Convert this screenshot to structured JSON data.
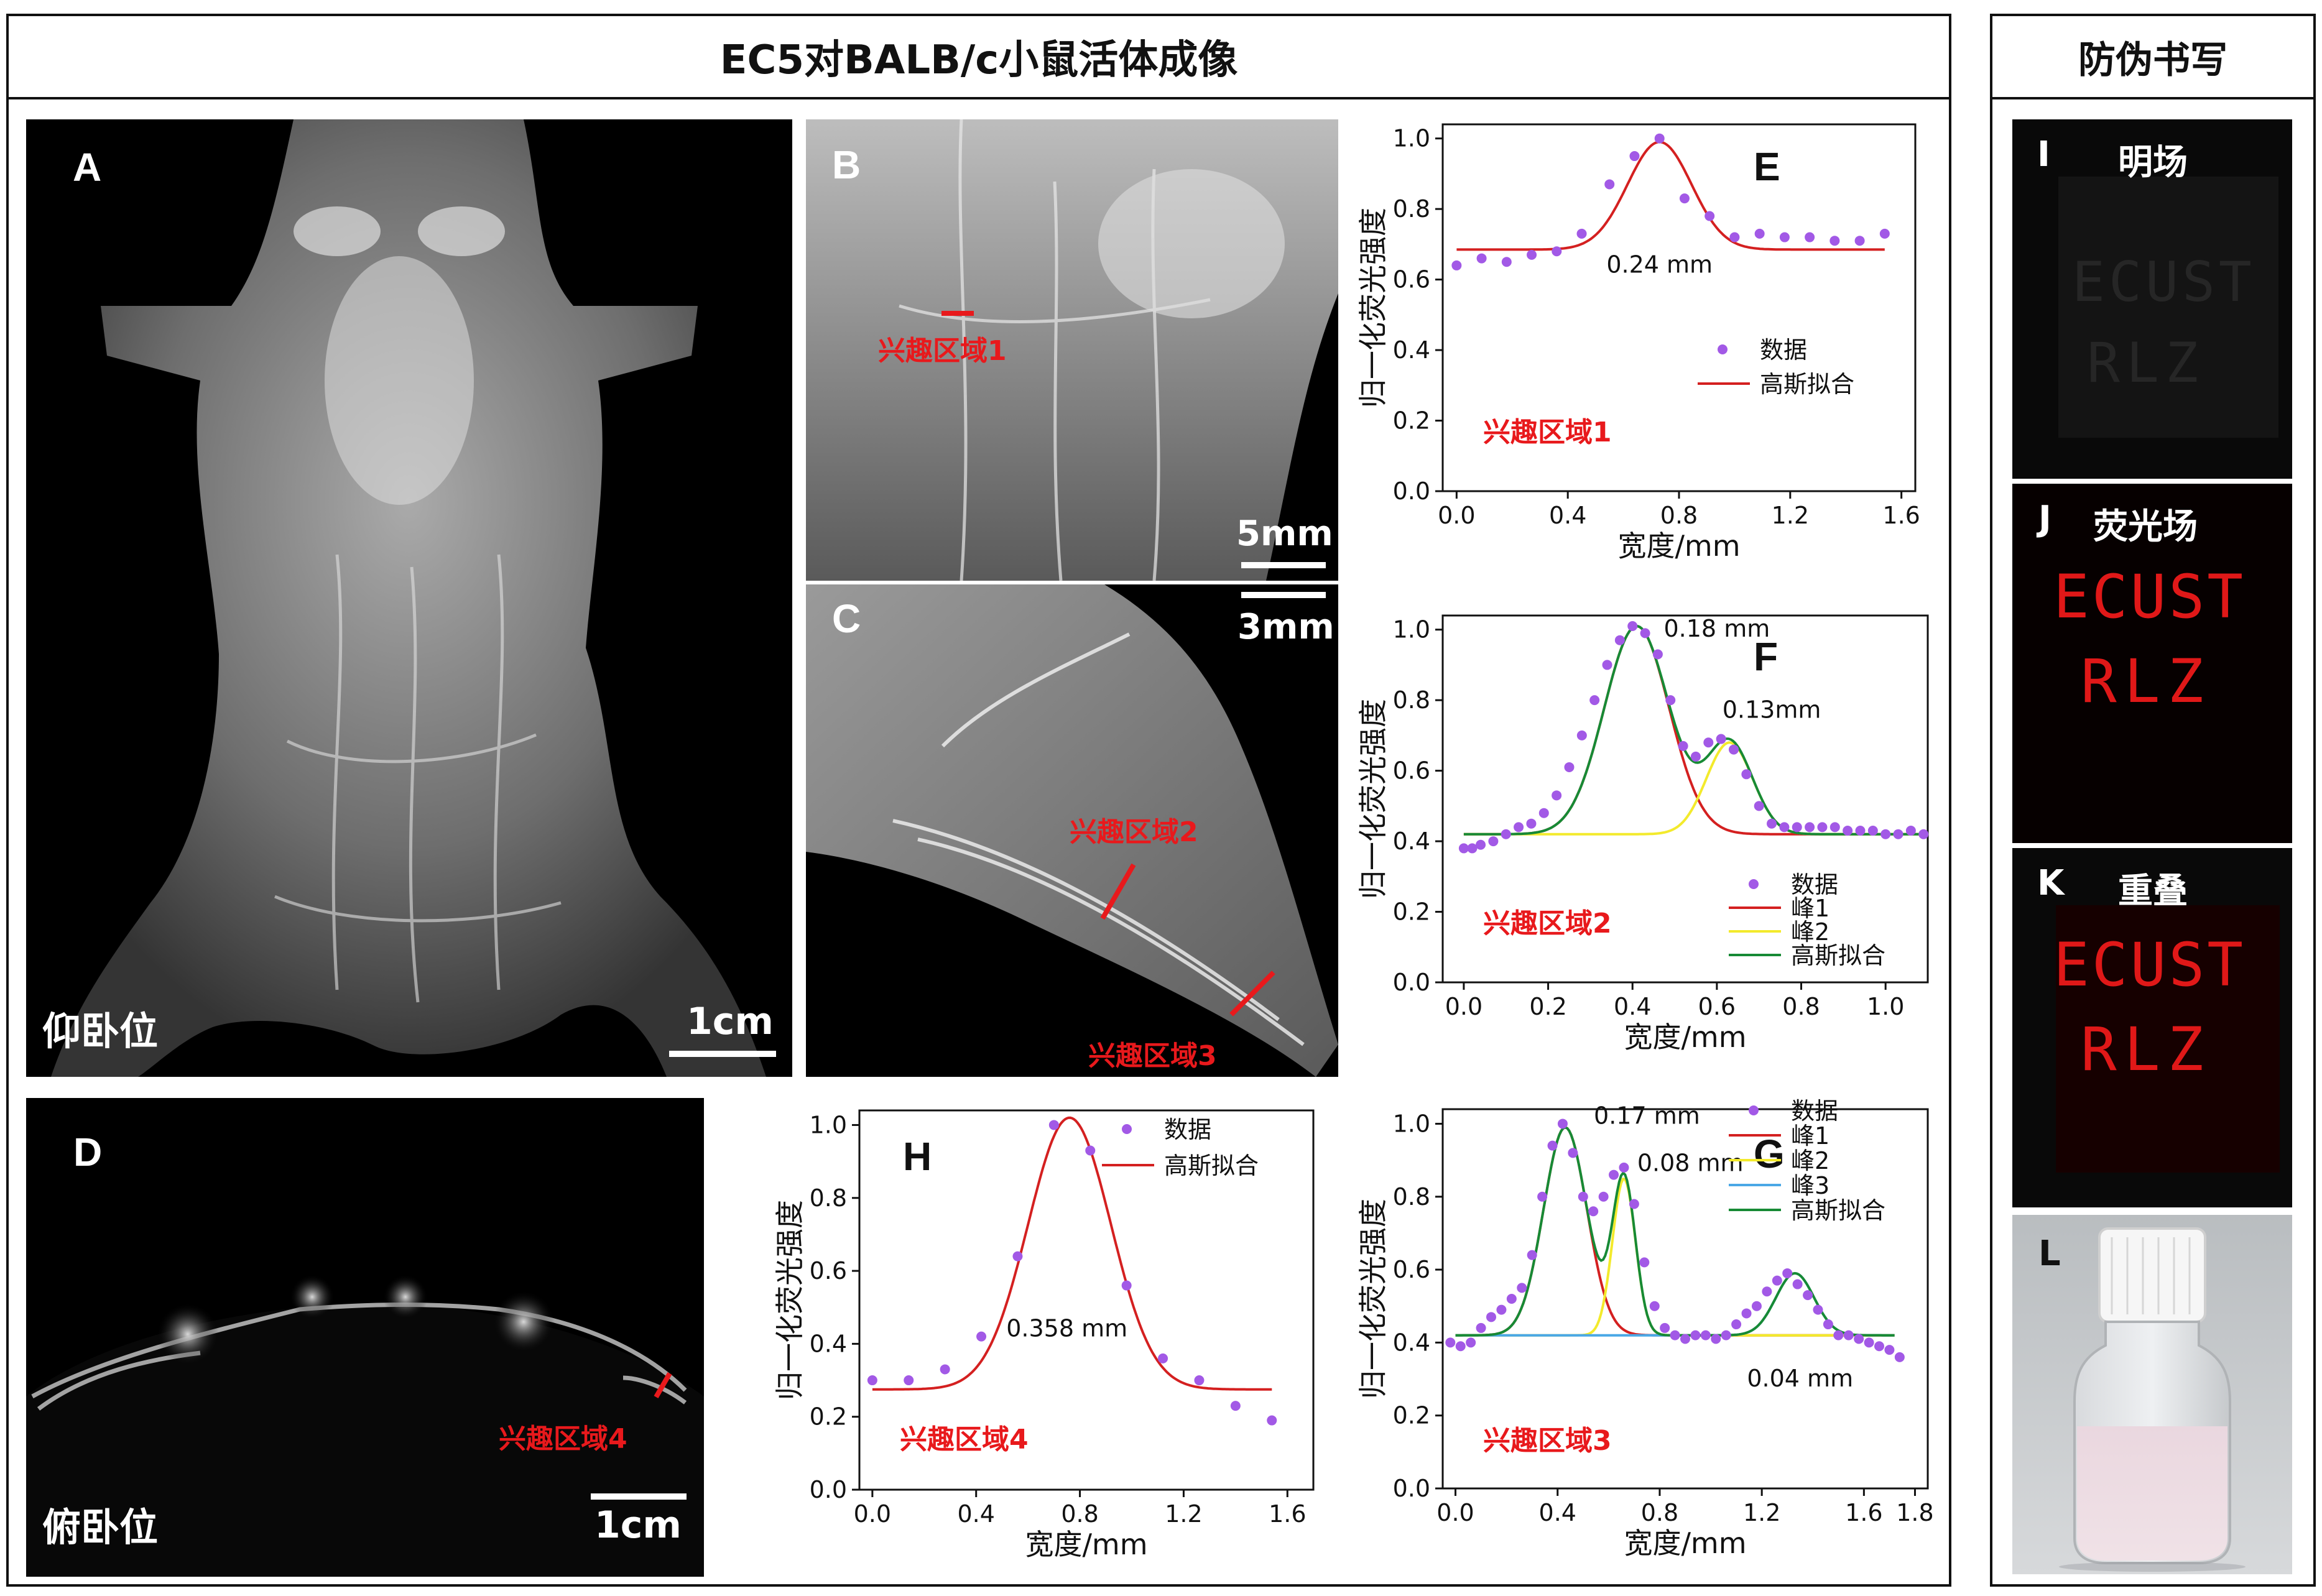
{
  "title": "EC5对BALB/c小鼠活体成像",
  "side_title": "防伪书写",
  "panels": {
    "A": {
      "letter": "A",
      "pose": "仰卧位",
      "scale": "1cm"
    },
    "B": {
      "letter": "B",
      "roi": "兴趣区域1",
      "scale": "5mm"
    },
    "C": {
      "letter": "C",
      "roi2": "兴趣区域2",
      "roi3": "兴趣区域3",
      "scale": "3mm"
    },
    "D": {
      "letter": "D",
      "pose": "俯卧位",
      "roi": "兴趣区域4",
      "scale": "1cm"
    },
    "I": {
      "letter": "I",
      "label": "明场",
      "writing": [
        "ECUST",
        "RLZ"
      ]
    },
    "J": {
      "letter": "J",
      "label": "荧光场",
      "writing": [
        "ECUST",
        "RLZ"
      ]
    },
    "K": {
      "letter": "K",
      "label": "重叠",
      "writing": [
        "ECUST",
        "RLZ"
      ]
    },
    "L": {
      "letter": "L"
    }
  },
  "colors": {
    "red_marker": "#e8191c",
    "data_point": "#a259e6",
    "fit": "#d42020",
    "peak1": "#d42020",
    "peak2": "#f3ea2c",
    "peak3": "#4aa8e6",
    "gauss_fit": "#178a35"
  },
  "chart_data": [
    {
      "id": "E",
      "type": "scatter",
      "letter": "E",
      "roi": "兴趣区域1",
      "xlabel": "宽度/mm",
      "ylabel": "归一化荧光强度",
      "xlim": [
        -0.05,
        1.65
      ],
      "ylim": [
        0,
        1.04
      ],
      "xticks": [
        0.0,
        0.4,
        0.8,
        1.2,
        1.6
      ],
      "yticks": [
        0.0,
        0.2,
        0.4,
        0.6,
        0.8,
        1.0
      ],
      "xtick_labels": [
        "0.0",
        "0.4",
        "0.8",
        "1.2",
        "1.6"
      ],
      "ytick_labels": [
        "0.0",
        "0.2",
        "0.4",
        "0.6",
        "0.8",
        "1.0"
      ],
      "legend": [
        "数据",
        "高斯拟合"
      ],
      "annotations": [
        {
          "text": "0.24 mm",
          "x": 0.73,
          "y": 0.62
        }
      ],
      "data": {
        "x": [
          0.0,
          0.09,
          0.18,
          0.27,
          0.36,
          0.45,
          0.55,
          0.64,
          0.73,
          0.82,
          0.91,
          1.0,
          1.09,
          1.18,
          1.27,
          1.36,
          1.45,
          1.54
        ],
        "y": [
          0.64,
          0.66,
          0.65,
          0.67,
          0.68,
          0.73,
          0.87,
          0.95,
          1.0,
          0.83,
          0.78,
          0.72,
          0.73,
          0.72,
          0.72,
          0.71,
          0.71,
          0.73
        ]
      },
      "fits": [
        {
          "name": "高斯拟合",
          "base": 0.685,
          "amp": 0.305,
          "mu": 0.73,
          "sigma": 0.115,
          "color": "#d42020",
          "x0": 0.0,
          "x1": 1.54
        }
      ]
    },
    {
      "id": "F",
      "type": "scatter",
      "letter": "F",
      "roi": "兴趣区域2",
      "xlabel": "宽度/mm",
      "ylabel": "归一化荧光强度",
      "xlim": [
        -0.05,
        1.1
      ],
      "ylim": [
        0,
        1.04
      ],
      "xticks": [
        0.0,
        0.2,
        0.4,
        0.6,
        0.8,
        1.0
      ],
      "yticks": [
        0.0,
        0.2,
        0.4,
        0.6,
        0.8,
        1.0
      ],
      "xtick_labels": [
        "0.0",
        "0.2",
        "0.4",
        "0.6",
        "0.8",
        "1.0"
      ],
      "ytick_labels": [
        "0.0",
        "0.2",
        "0.4",
        "0.6",
        "0.8",
        "1.0"
      ],
      "legend": [
        "数据",
        "峰1",
        "峰2",
        "高斯拟合"
      ],
      "annotations": [
        {
          "text": "0.18 mm",
          "x": 0.6,
          "y": 0.98
        },
        {
          "text": "0.13mm",
          "x": 0.73,
          "y": 0.75
        }
      ],
      "data": {
        "x": [
          0.0,
          0.02,
          0.04,
          0.07,
          0.1,
          0.13,
          0.16,
          0.19,
          0.22,
          0.25,
          0.28,
          0.31,
          0.34,
          0.37,
          0.4,
          0.43,
          0.46,
          0.49,
          0.52,
          0.55,
          0.58,
          0.61,
          0.64,
          0.67,
          0.7,
          0.73,
          0.76,
          0.79,
          0.82,
          0.85,
          0.88,
          0.91,
          0.94,
          0.97,
          1.0,
          1.03,
          1.06,
          1.09
        ],
        "y": [
          0.38,
          0.38,
          0.39,
          0.4,
          0.42,
          0.44,
          0.45,
          0.48,
          0.53,
          0.61,
          0.7,
          0.8,
          0.9,
          0.97,
          1.01,
          0.99,
          0.93,
          0.8,
          0.67,
          0.64,
          0.68,
          0.69,
          0.66,
          0.59,
          0.5,
          0.45,
          0.44,
          0.44,
          0.44,
          0.44,
          0.44,
          0.43,
          0.43,
          0.43,
          0.42,
          0.42,
          0.43,
          0.42
        ]
      },
      "fits": [
        {
          "name": "峰1",
          "base": 0.42,
          "amp": 0.59,
          "mu": 0.41,
          "sigma": 0.077,
          "color": "#d42020",
          "x0": 0.0,
          "x1": 1.08
        },
        {
          "name": "峰2",
          "base": 0.42,
          "amp": 0.26,
          "mu": 0.63,
          "sigma": 0.055,
          "color": "#f3ea2c",
          "x0": 0.0,
          "x1": 1.08
        },
        {
          "name": "高斯拟合",
          "base": 0.42,
          "peaks": [
            [
              0.59,
              0.41,
              0.077
            ],
            [
              0.26,
              0.63,
              0.055
            ]
          ],
          "color": "#178a35",
          "x0": 0.0,
          "x1": 1.08
        }
      ]
    },
    {
      "id": "G",
      "type": "scatter",
      "letter": "G",
      "roi": "兴趣区域3",
      "xlabel": "宽度/mm",
      "ylabel": "归一化荧光强度",
      "xlim": [
        -0.05,
        1.85
      ],
      "ylim": [
        0,
        1.04
      ],
      "xticks": [
        0.0,
        0.4,
        0.8,
        1.2,
        1.6,
        1.8
      ],
      "yticks": [
        0.0,
        0.2,
        0.4,
        0.6,
        0.8,
        1.0
      ],
      "xtick_labels": [
        "0.0",
        "0.4",
        "0.8",
        "1.2",
        "1.6",
        "1.8"
      ],
      "ytick_labels": [
        "0.0",
        "0.2",
        "0.4",
        "0.6",
        "0.8",
        "1.0"
      ],
      "legend": [
        "数据",
        "峰1",
        "峰2",
        "峰3",
        "高斯拟合"
      ],
      "annotations": [
        {
          "text": "0.17 mm",
          "x": 0.75,
          "y": 1.0
        },
        {
          "text": "0.08 mm",
          "x": 0.92,
          "y": 0.87
        },
        {
          "text": "0.04 mm",
          "x": 1.35,
          "y": 0.28
        }
      ],
      "data": {
        "x": [
          -0.02,
          0.02,
          0.06,
          0.1,
          0.14,
          0.18,
          0.22,
          0.26,
          0.3,
          0.34,
          0.38,
          0.42,
          0.46,
          0.5,
          0.54,
          0.58,
          0.62,
          0.66,
          0.7,
          0.74,
          0.78,
          0.82,
          0.86,
          0.9,
          0.94,
          0.98,
          1.02,
          1.06,
          1.1,
          1.14,
          1.18,
          1.22,
          1.26,
          1.3,
          1.34,
          1.38,
          1.42,
          1.46,
          1.5,
          1.54,
          1.58,
          1.62,
          1.66,
          1.7,
          1.74
        ],
        "y": [
          0.4,
          0.39,
          0.4,
          0.44,
          0.47,
          0.49,
          0.52,
          0.55,
          0.64,
          0.8,
          0.94,
          1.0,
          0.92,
          0.8,
          0.76,
          0.8,
          0.86,
          0.88,
          0.78,
          0.62,
          0.5,
          0.44,
          0.42,
          0.41,
          0.42,
          0.42,
          0.41,
          0.42,
          0.45,
          0.48,
          0.5,
          0.54,
          0.57,
          0.59,
          0.56,
          0.53,
          0.49,
          0.45,
          0.42,
          0.42,
          0.41,
          0.4,
          0.39,
          0.38,
          0.36
        ]
      },
      "fits": [
        {
          "name": "峰1",
          "base": 0.42,
          "amp": 0.57,
          "mu": 0.43,
          "sigma": 0.085,
          "color": "#d42020",
          "x0": 0.0,
          "x1": 1.72
        },
        {
          "name": "峰2",
          "base": 0.42,
          "amp": 0.43,
          "mu": 0.66,
          "sigma": 0.045,
          "color": "#f3ea2c",
          "x0": 0.0,
          "x1": 1.72
        },
        {
          "name": "峰3",
          "base": 0.42,
          "amp": 0.17,
          "mu": 1.33,
          "sigma": 0.075,
          "color": "#4aa8e6",
          "x0": 0.0,
          "x1": 1.72
        },
        {
          "name": "高斯拟合",
          "base": 0.42,
          "peaks": [
            [
              0.57,
              0.43,
              0.085
            ],
            [
              0.43,
              0.66,
              0.045
            ],
            [
              0.17,
              1.33,
              0.075
            ]
          ],
          "color": "#178a35",
          "x0": 0.0,
          "x1": 1.72
        }
      ]
    },
    {
      "id": "H",
      "type": "scatter",
      "letter": "H",
      "roi": "兴趣区域4",
      "xlabel": "宽度/mm",
      "ylabel": "归一化荧光强度",
      "xlim": [
        -0.05,
        1.7
      ],
      "ylim": [
        0,
        1.04
      ],
      "xticks": [
        0.0,
        0.4,
        0.8,
        1.2,
        1.6
      ],
      "yticks": [
        0.0,
        0.2,
        0.4,
        0.6,
        0.8,
        1.0
      ],
      "xtick_labels": [
        "0.0",
        "0.4",
        "0.8",
        "1.2",
        "1.6"
      ],
      "ytick_labels": [
        "0.0",
        "0.2",
        "0.4",
        "0.6",
        "0.8",
        "1.0"
      ],
      "legend": [
        "数据",
        "高斯拟合"
      ],
      "annotations": [
        {
          "text": "0.358 mm",
          "x": 0.75,
          "y": 0.42
        }
      ],
      "data": {
        "x": [
          0.0,
          0.14,
          0.28,
          0.42,
          0.56,
          0.7,
          0.84,
          0.98,
          1.12,
          1.26,
          1.4,
          1.54
        ],
        "y": [
          0.3,
          0.3,
          0.33,
          0.42,
          0.64,
          1.0,
          0.93,
          0.56,
          0.36,
          0.3,
          0.23,
          0.19
        ]
      },
      "fits": [
        {
          "name": "高斯拟合",
          "base": 0.275,
          "amp": 0.745,
          "mu": 0.76,
          "sigma": 0.16,
          "color": "#d42020",
          "x0": 0.0,
          "x1": 1.54
        }
      ]
    }
  ]
}
